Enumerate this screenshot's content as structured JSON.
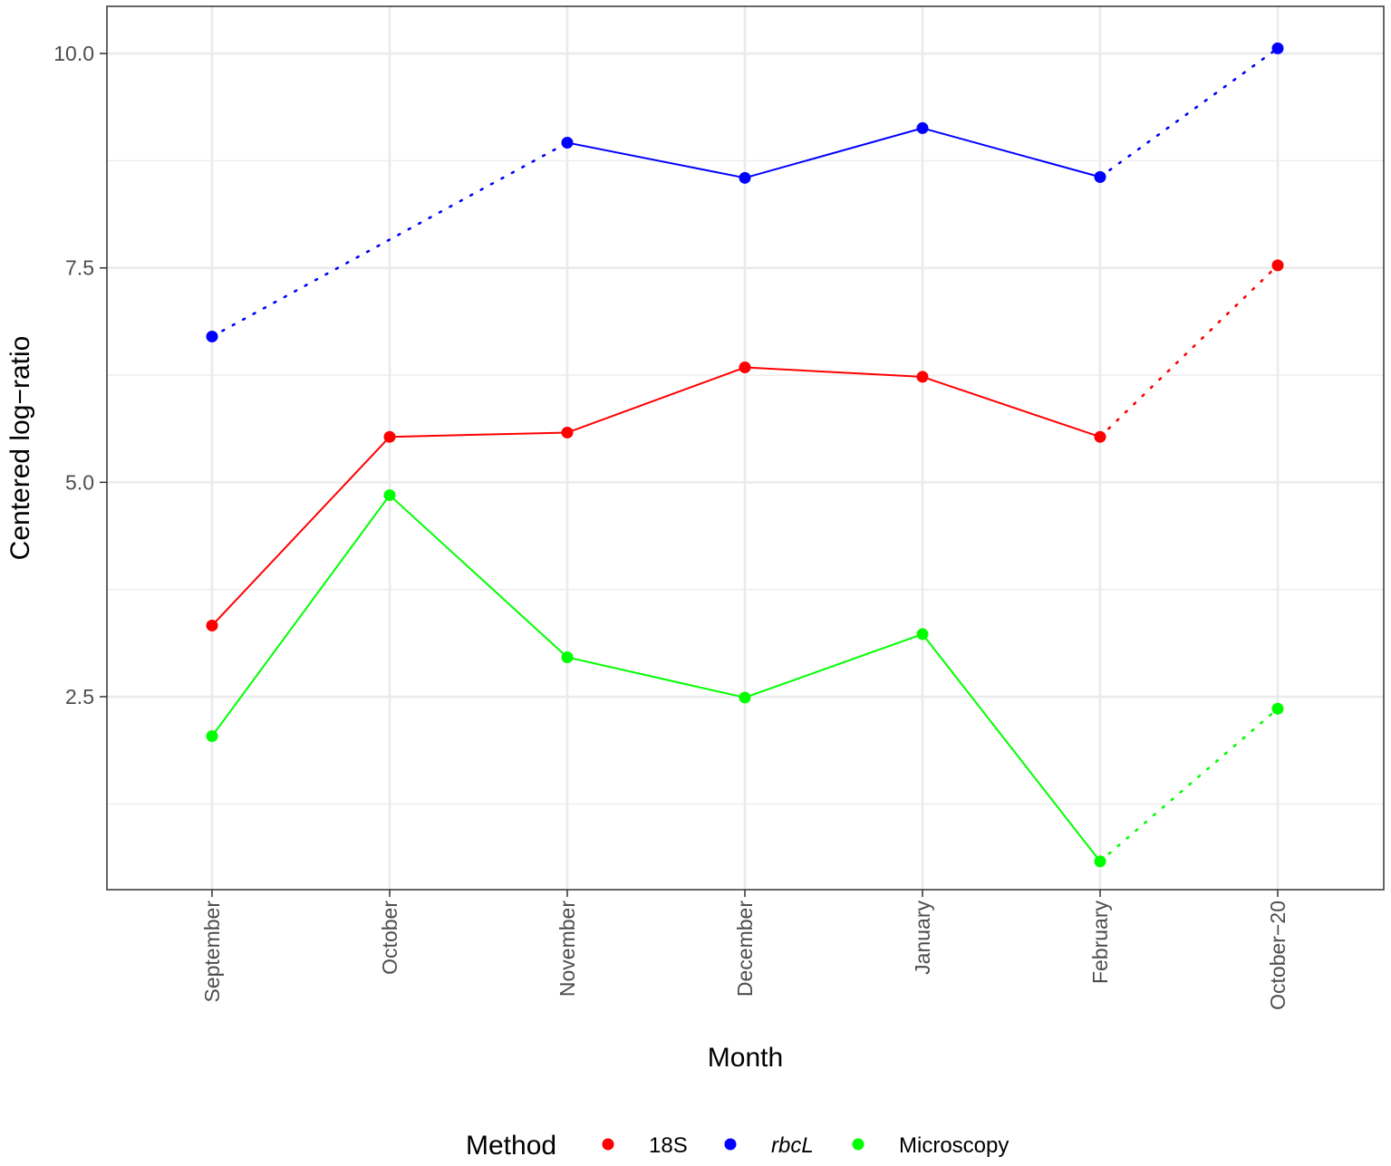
{
  "chart_data": {
    "type": "line",
    "title": "",
    "xlabel": "Month",
    "ylabel": "Centered log−ratio",
    "categories": [
      "September",
      "October",
      "November",
      "December",
      "January",
      "February",
      "October−20"
    ],
    "ylim": [
      0.25,
      10.55
    ],
    "yticks": [
      2.5,
      5.0,
      7.5,
      10.0
    ],
    "yticklabels": [
      "2.5",
      "5.0",
      "7.5",
      "10.0"
    ],
    "grid": true,
    "legend": {
      "title": "Method",
      "position": "bottom",
      "entries": [
        "18S",
        "rbcL",
        "Microscopy"
      ]
    },
    "series": [
      {
        "name": "18S",
        "color": "#ff0000",
        "values": [
          3.33,
          5.53,
          5.58,
          6.34,
          6.23,
          5.53,
          7.53
        ],
        "dotted_segments": [
          [
            5,
            6
          ]
        ]
      },
      {
        "name": "rbcL",
        "color": "#0000ff",
        "italic": true,
        "values": [
          6.7,
          null,
          8.96,
          8.55,
          9.13,
          8.56,
          10.06
        ],
        "dotted_segments": [
          [
            0,
            2
          ],
          [
            5,
            6
          ]
        ]
      },
      {
        "name": "Microscopy",
        "color": "#00ff00",
        "values": [
          2.04,
          4.85,
          2.96,
          2.49,
          3.23,
          0.58,
          2.36
        ],
        "dotted_segments": [
          [
            5,
            6
          ]
        ]
      }
    ]
  }
}
